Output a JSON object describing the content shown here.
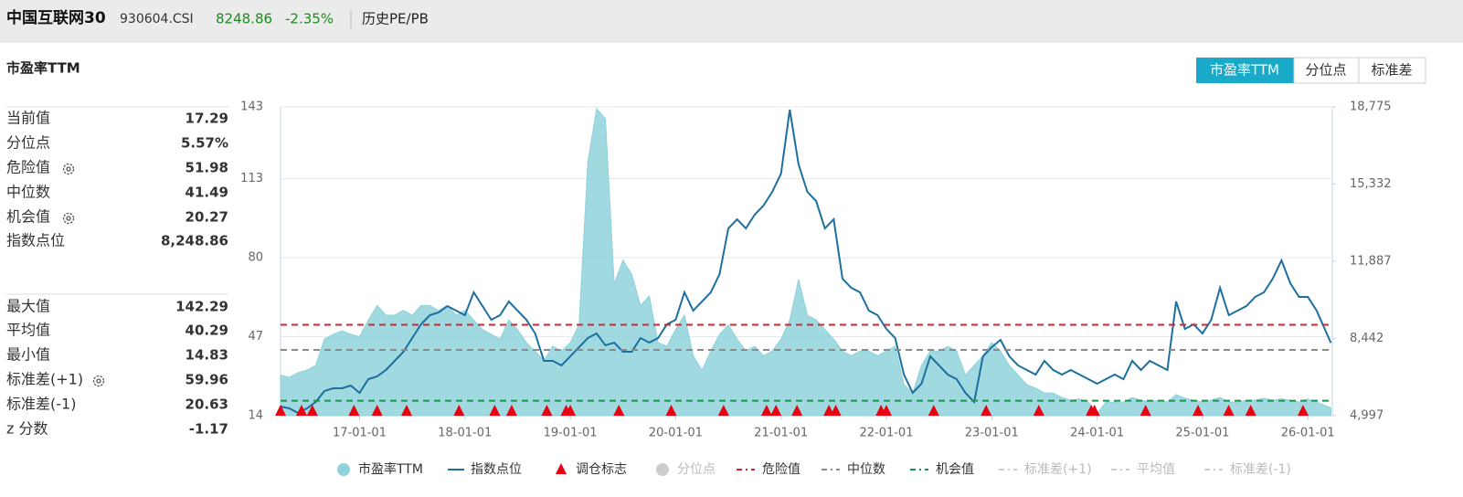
{
  "header": {
    "name": "中国互联网30",
    "code": "930604.CSI",
    "price": "8248.86",
    "change": "-2.35%",
    "section": "历史PE/PB"
  },
  "tabs": [
    "市盈率TTM",
    "分位点",
    "标准差"
  ],
  "active_tab": 0,
  "stats": [
    {
      "label": "当前值",
      "value": "17.29"
    },
    {
      "label": "分位点",
      "value": "5.57%"
    },
    {
      "label": "危险值",
      "value": "51.98"
    },
    {
      "label": "中位数",
      "value": "41.49"
    },
    {
      "label": "机会值",
      "value": "20.27"
    },
    {
      "label": "指数点位",
      "value": "8,248.86"
    },
    {
      "label": "最大值",
      "value": "142.29"
    },
    {
      "label": "平均值",
      "value": "40.29"
    },
    {
      "label": "最小值",
      "value": "14.83"
    },
    {
      "label": "标准差(+1)",
      "value": "59.96"
    },
    {
      "label": "标准差(-1)",
      "value": "20.63"
    },
    {
      "label": "z 分数",
      "value": "-1.17"
    }
  ],
  "chart_data": {
    "type": "line",
    "title": "市盈率TTM",
    "x": [
      "16-04-01",
      "16-05-01",
      "16-06-01",
      "16-07-01",
      "16-08-01",
      "16-09-01",
      "16-10-01",
      "16-11-01",
      "16-12-01",
      "17-01-01",
      "17-02-01",
      "17-03-01",
      "17-04-01",
      "17-05-01",
      "17-06-01",
      "17-07-01",
      "17-08-01",
      "17-09-01",
      "17-10-01",
      "17-11-01",
      "17-12-01",
      "18-01-01",
      "18-02-01",
      "18-03-01",
      "18-04-01",
      "18-05-01",
      "18-06-01",
      "18-07-01",
      "18-08-01",
      "18-09-01",
      "18-10-01",
      "18-11-01",
      "18-12-01",
      "19-01-01",
      "19-02-01",
      "19-03-01",
      "19-04-01",
      "19-05-01",
      "19-06-01",
      "19-07-01",
      "19-08-01",
      "19-09-01",
      "19-10-01",
      "19-11-01",
      "19-12-01",
      "20-01-01",
      "20-02-01",
      "20-03-01",
      "20-04-01",
      "20-05-01",
      "20-06-01",
      "20-07-01",
      "20-08-01",
      "20-09-01",
      "20-10-01",
      "20-11-01",
      "20-12-01",
      "21-01-01",
      "21-02-01",
      "21-03-01",
      "21-04-01",
      "21-05-01",
      "21-06-01",
      "21-07-01",
      "21-08-01",
      "21-09-01",
      "21-10-01",
      "21-11-01",
      "21-12-01",
      "22-01-01",
      "22-02-01",
      "22-03-01",
      "22-04-01",
      "22-05-01",
      "22-06-01",
      "22-07-01",
      "22-08-01",
      "22-09-01",
      "22-10-01",
      "22-11-01",
      "22-12-01",
      "23-01-01",
      "23-02-01",
      "23-03-01",
      "23-04-01",
      "23-05-01",
      "23-06-01",
      "23-07-01",
      "23-08-01",
      "23-09-01",
      "23-10-01",
      "23-11-01",
      "23-12-01",
      "24-01-01",
      "24-02-01",
      "24-03-01",
      "24-04-01",
      "24-05-01",
      "24-06-01",
      "24-07-01",
      "24-08-01",
      "24-09-01",
      "24-10-01",
      "24-11-01",
      "24-12-01",
      "25-01-01",
      "25-02-01",
      "25-03-01",
      "25-04-01",
      "25-05-01",
      "25-06-01",
      "25-07-01",
      "25-08-01",
      "25-09-01",
      "25-10-01",
      "25-11-01",
      "25-12-01",
      "26-01-01",
      "26-02-01",
      "26-03-20"
    ],
    "xlim": [
      "16-04-01",
      "26-03-25"
    ],
    "xticks": [
      "17-01-01",
      "18-01-01",
      "19-01-01",
      "20-01-01",
      "21-01-01",
      "22-01-01",
      "23-01-01",
      "24-01-01",
      "25-01-01",
      "26-01-01"
    ],
    "ylim": [
      14,
      143
    ],
    "yticks": [
      14,
      47,
      80,
      113,
      143
    ],
    "y2lim": [
      4997,
      18775
    ],
    "y2ticks": [
      {
        "value": 4997,
        "label": "4,997"
      },
      {
        "value": 8442,
        "label": "8,442"
      },
      {
        "value": 11887,
        "label": "11,887"
      },
      {
        "value": 15332,
        "label": "15,332"
      },
      {
        "value": 18775,
        "label": "18,775"
      }
    ],
    "grid": true,
    "series": [
      {
        "name": "市盈率TTM",
        "kind": "area",
        "color": "#8fd2db",
        "values": [
          31,
          30,
          32,
          33,
          35,
          46,
          48,
          49.5,
          48,
          47,
          54,
          60,
          56,
          56,
          58,
          56,
          60,
          60,
          58,
          60,
          56,
          58,
          54,
          50,
          48,
          46,
          54,
          50,
          44.5,
          41,
          37,
          43,
          41,
          44.5,
          52,
          120,
          142.29,
          138,
          69,
          79,
          73,
          60,
          64,
          44.5,
          43,
          50,
          56,
          39,
          33,
          41,
          48,
          52,
          46,
          41,
          43,
          39,
          41,
          46,
          54,
          71,
          56,
          54,
          50,
          46,
          41,
          39,
          41,
          41,
          39,
          41,
          43,
          27,
          23.5,
          35,
          41,
          41,
          43,
          41,
          31,
          35,
          39,
          44.5,
          41,
          35,
          31,
          27,
          25.5,
          23.5,
          23.5,
          21.6,
          20.5,
          21,
          19.7,
          14.83,
          19.7,
          19.7,
          19.7,
          21.6,
          20.5,
          19.7,
          20.5,
          19.7,
          22.8,
          21.3,
          20.5,
          19.7,
          20.5,
          21.6,
          19.7,
          19.7,
          20.5,
          20.5,
          21.3,
          20.5,
          21,
          20.5,
          19.7,
          21,
          19.7,
          17.29
        ]
      },
      {
        "name": "指数点位",
        "kind": "line",
        "axis": "y2",
        "color": "#1d6fa0",
        "values": [
          5405,
          5323,
          5119,
          5323,
          5608,
          6098,
          6220,
          6220,
          6342,
          6016,
          6627,
          6750,
          7035,
          7443,
          7850,
          8462,
          9073,
          9481,
          9603,
          9888,
          9684,
          9481,
          10500,
          9888,
          9277,
          9481,
          10092,
          9684,
          9277,
          8665,
          7443,
          7443,
          7239,
          7646,
          8054,
          8462,
          8665,
          8135,
          8258,
          7850,
          7850,
          8462,
          8258,
          8462,
          9073,
          9277,
          10500,
          9684,
          10092,
          10500,
          11315,
          13353,
          13760,
          13353,
          13964,
          14372,
          14983,
          15798,
          18652,
          16206,
          14983,
          14576,
          13353,
          13760,
          11111,
          10703,
          10500,
          9684,
          9481,
          8869,
          8462,
          6831,
          6016,
          6424,
          7646,
          7239,
          6831,
          6627,
          6016,
          5608,
          7646,
          8054,
          8380,
          7646,
          7239,
          7035,
          6831,
          7443,
          7035,
          6831,
          7035,
          6831,
          6627,
          6424,
          6627,
          6831,
          6627,
          7443,
          7035,
          7443,
          7239,
          7035,
          10092,
          8869,
          9073,
          8665,
          9277,
          10703,
          9481,
          9684,
          9888,
          10296,
          10500,
          11111,
          11926,
          10907,
          10296,
          10296,
          9684,
          8248.86
        ]
      },
      {
        "name": "调仓标志",
        "kind": "marker",
        "color": "#e60012",
        "x": [
          "16-04-01",
          "16-06-13",
          "16-07-20",
          "16-12-12",
          "17-03-01",
          "17-06-12",
          "17-12-11",
          "18-04-13",
          "18-06-11",
          "18-10-11",
          "18-12-17",
          "19-01-01",
          "19-06-17",
          "19-12-16",
          "20-06-15",
          "20-11-12",
          "20-12-14",
          "21-02-26",
          "21-06-15",
          "21-07-08",
          "21-12-13",
          "22-01-01",
          "22-06-13",
          "22-12-12",
          "23-06-12",
          "23-12-11",
          "23-12-22",
          "24-06-17",
          "24-12-16",
          "25-03-31",
          "25-06-16",
          "25-12-15"
        ]
      },
      {
        "name": "分位点",
        "kind": "hidden",
        "color": "#cccccc"
      }
    ],
    "hlines": [
      {
        "name": "危险值",
        "value": 51.98,
        "color": "#d9232d"
      },
      {
        "name": "中位数",
        "value": 41.49,
        "color": "#8a8a8a"
      },
      {
        "name": "机会值",
        "value": 20.27,
        "color": "#17994a"
      },
      {
        "name": "标准差(+1)",
        "color": "#cccccc",
        "hidden": true
      },
      {
        "name": "平均值",
        "color": "#cccccc",
        "hidden": true
      },
      {
        "name": "标准差(-1)",
        "color": "#cccccc",
        "hidden": true
      }
    ]
  }
}
